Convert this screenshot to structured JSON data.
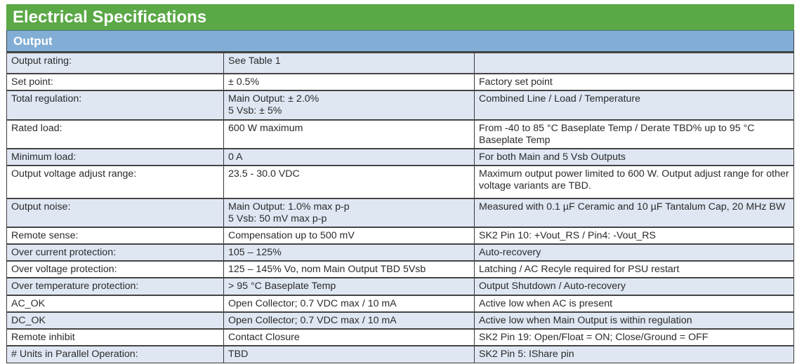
{
  "title": "Electrical Specifications",
  "section": "Output",
  "rows": [
    {
      "param": "Output rating:",
      "value": "See Table 1",
      "note": ""
    },
    {
      "param": "Set point:",
      "value": "± 0.5%",
      "note": "Factory set point"
    },
    {
      "param": "Total regulation:",
      "value": "Main Output: ± 2.0%\n5 Vsb: ± 5%",
      "note": "Combined Line / Load / Temperature"
    },
    {
      "param": "Rated load:",
      "value": "600 W maximum",
      "note": "From -40 to 85 °C Baseplate Temp / Derate TBD% up to 95 °C Baseplate Temp"
    },
    {
      "param": "Minimum load:",
      "value": "0 A",
      "note": "For both Main and 5 Vsb Outputs"
    },
    {
      "param": "Output voltage adjust range:",
      "value": "23.5 - 30.0 VDC",
      "note": "Maximum output power limited to 600 W. Output adjust range for other voltage variants are TBD."
    },
    {
      "param": "Output noise:",
      "value": "Main Output: 1.0% max p-p\n5 Vsb: 50 mV max p-p",
      "note": "Measured with 0.1 µF Ceramic and 10 µF Tantalum Cap, 20 MHz BW"
    },
    {
      "param": "Remote sense:",
      "value": "Compensation up to 500 mV",
      "note": "SK2 Pin 10: +Vout_RS / Pin4: -Vout_RS"
    },
    {
      "param": "Over current protection:",
      "value": "105 – 125%",
      "note": "Auto-recovery"
    },
    {
      "param": "Over voltage protection:",
      "value": "125 – 145% Vo, nom Main Output TBD 5Vsb",
      "note": "Latching / AC Recyle required for PSU restart"
    },
    {
      "param": "Over temperature protection:",
      "value": "> 95 °C Baseplate Temp",
      "note": "Output Shutdown / Auto-recovery"
    },
    {
      "param": "AC_OK",
      "value": "Open Collector; 0.7 VDC max / 10 mA",
      "note": "Active low when AC is present"
    },
    {
      "param": "DC_OK",
      "value": "Open Collector; 0.7 VDC max / 10 mA",
      "note": "Active low when Main Output is within regulation"
    },
    {
      "param": "Remote inhibit",
      "value": "Contact Closure",
      "note": "SK2 Pin 19: Open/Float = ON; Close/Ground = OFF"
    },
    {
      "param": "# Units in Parallel Operation:",
      "value": "TBD",
      "note": "SK2 Pin 5: IShare pin"
    }
  ],
  "colors": {
    "title_bg": "#5aa846",
    "section_bg": "#82aed6",
    "alt_row_bg": "#dfe7f3"
  }
}
